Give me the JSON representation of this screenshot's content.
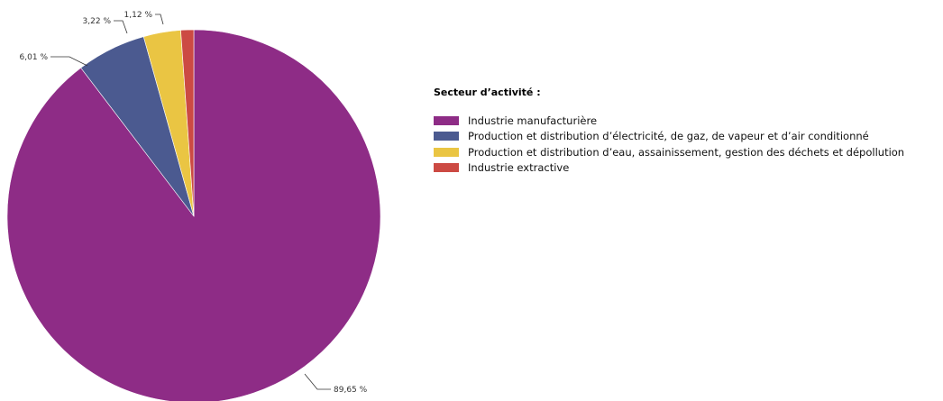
{
  "chart_data": {
    "type": "pie",
    "legend_title": "Secteur d’activité :",
    "legend_placement": "right",
    "series": [
      {
        "name": "Industrie manufacturière",
        "value": 89.65,
        "label": "89,65 %",
        "color": "#8e2c86"
      },
      {
        "name": "Production et distribution d’électricité, de gaz, de vapeur et d’air conditionné",
        "value": 6.01,
        "label": "6,01 %",
        "color": "#4b5a90"
      },
      {
        "name": "Production et distribution d’eau, assainissement, gestion des déchets et dépollution",
        "value": 3.22,
        "label": "3,22 %",
        "color": "#eac543"
      },
      {
        "name": "Industrie extractive",
        "value": 1.12,
        "label": "1,12 %",
        "color": "#cc4a43"
      }
    ]
  }
}
